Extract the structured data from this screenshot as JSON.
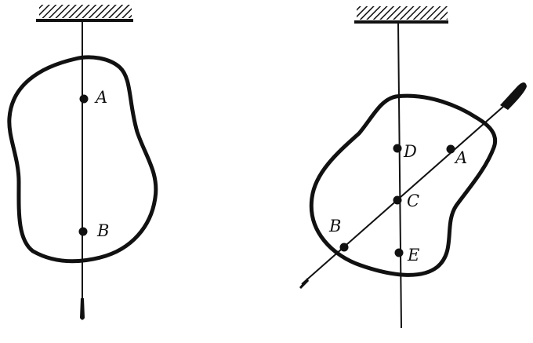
{
  "figure_left": {
    "points": [
      {
        "id": "A",
        "label": "A"
      },
      {
        "id": "B",
        "label": "B"
      }
    ]
  },
  "figure_right": {
    "points": [
      {
        "id": "D",
        "label": "D"
      },
      {
        "id": "A",
        "label": "A"
      },
      {
        "id": "C",
        "label": "C"
      },
      {
        "id": "B",
        "label": "B"
      },
      {
        "id": "E",
        "label": "E"
      }
    ]
  },
  "colors": {
    "ink": "#111111",
    "background": "#ffffff"
  }
}
